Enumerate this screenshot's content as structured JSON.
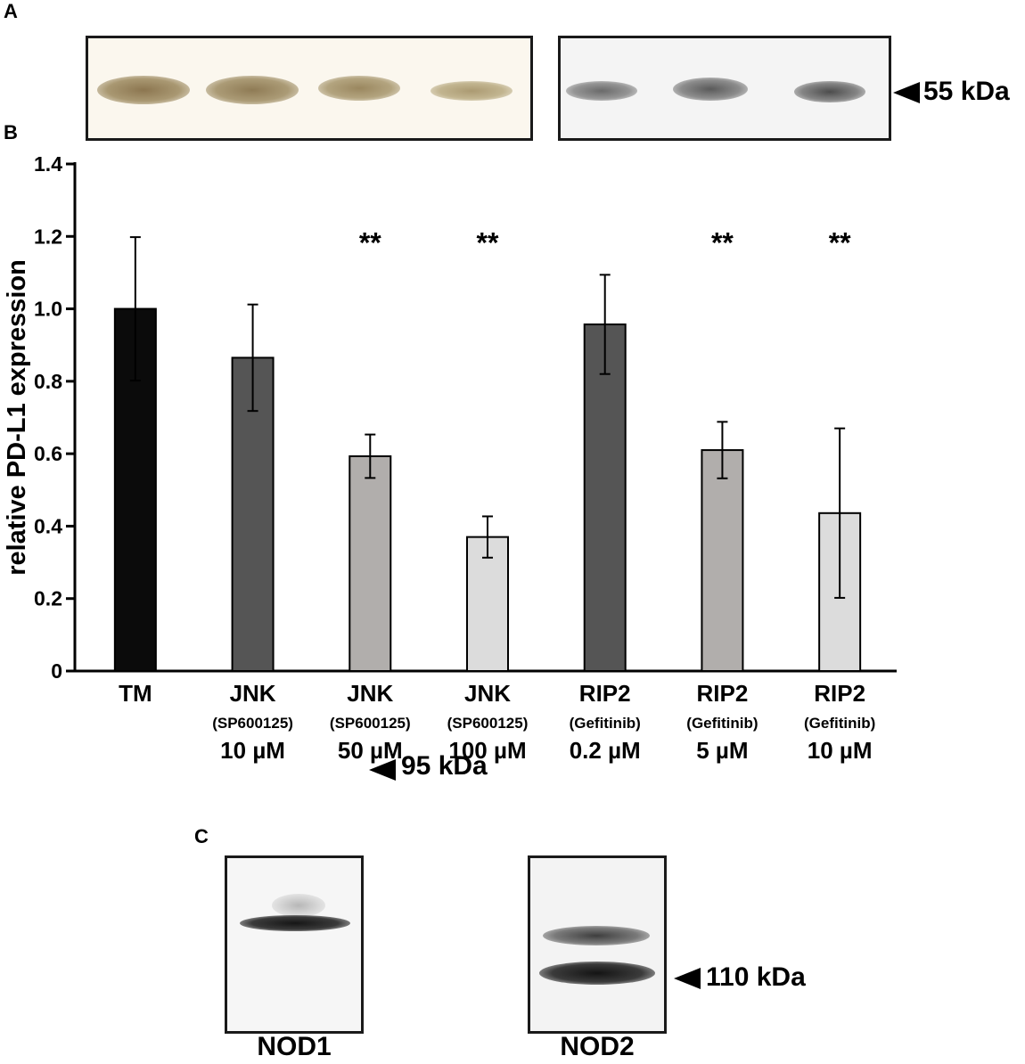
{
  "panels": {
    "a": {
      "letter": "A",
      "marker": "55 kDa"
    },
    "b": {
      "letter": "B"
    },
    "c": {
      "letter": "C",
      "blots": [
        {
          "name": "NOD1",
          "marker": "95 kDa"
        },
        {
          "name": "NOD2",
          "marker": "110 kDa"
        }
      ]
    }
  },
  "colors": {
    "black": "#0b0b0b",
    "dark_gray": "#555555",
    "mid_gray": "#b1aeac",
    "light_gray": "#dcdcdc",
    "blot_brown": "#9b8660",
    "blot_gray": "#4a4a4a"
  },
  "chart_data": {
    "type": "bar",
    "ylabel": "relative PD-L1 expression",
    "xlabel": "",
    "ylim": [
      0,
      1.4
    ],
    "yticks": [
      "0",
      "0.2",
      "0.4",
      "0.6",
      "0.8",
      "1.0",
      "1.2",
      "1.4"
    ],
    "grid": false,
    "categories": [
      {
        "line1": "TM",
        "line2": "",
        "line3": ""
      },
      {
        "line1": "JNK",
        "line2": "(SP600125)",
        "line3": "10 µM"
      },
      {
        "line1": "JNK",
        "line2": "(SP600125)",
        "line3": "50 µM"
      },
      {
        "line1": "JNK",
        "line2": "(SP600125)",
        "line3": "100 µM"
      },
      {
        "line1": "RIP2",
        "line2": "(Gefitinib)",
        "line3": "0.2 µM"
      },
      {
        "line1": "RIP2",
        "line2": "(Gefitinib)",
        "line3": "5 µM"
      },
      {
        "line1": "RIP2",
        "line2": "(Gefitinib)",
        "line3": "10 µM"
      }
    ],
    "values": [
      1.0,
      0.865,
      0.593,
      0.37,
      0.957,
      0.61,
      0.436
    ],
    "errors": [
      0.198,
      0.147,
      0.06,
      0.057,
      0.137,
      0.078,
      0.234
    ],
    "bar_colors": [
      "#0b0b0b",
      "#555555",
      "#b1aeac",
      "#dcdcdc",
      "#555555",
      "#b1aeac",
      "#dcdcdc"
    ],
    "significance": [
      "",
      "",
      "**",
      "**",
      "",
      "**",
      "**"
    ],
    "significance_y": 1.2
  }
}
